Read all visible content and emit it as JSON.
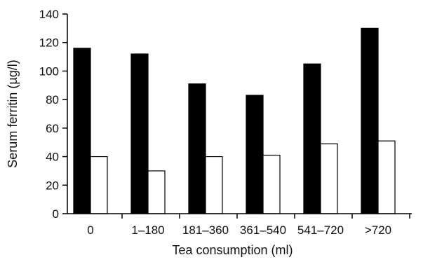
{
  "chart_data": {
    "type": "bar",
    "title": "",
    "xlabel": "Tea consumption (ml)",
    "ylabel": "Serum ferritin (µg/l)",
    "categories": [
      "0",
      "1–180",
      "181–360",
      "361–540",
      "541–720",
      ">720"
    ],
    "series": [
      {
        "values": [
          116,
          112,
          91,
          83,
          105,
          130
        ],
        "color": "#000000"
      },
      {
        "values": [
          40,
          30,
          40,
          41,
          49,
          51
        ],
        "color": "#ffffff"
      }
    ],
    "ylim": [
      0,
      140
    ],
    "yticks": [
      0,
      20,
      40,
      60,
      80,
      100,
      120,
      140
    ],
    "grid": false,
    "legend": "none"
  }
}
